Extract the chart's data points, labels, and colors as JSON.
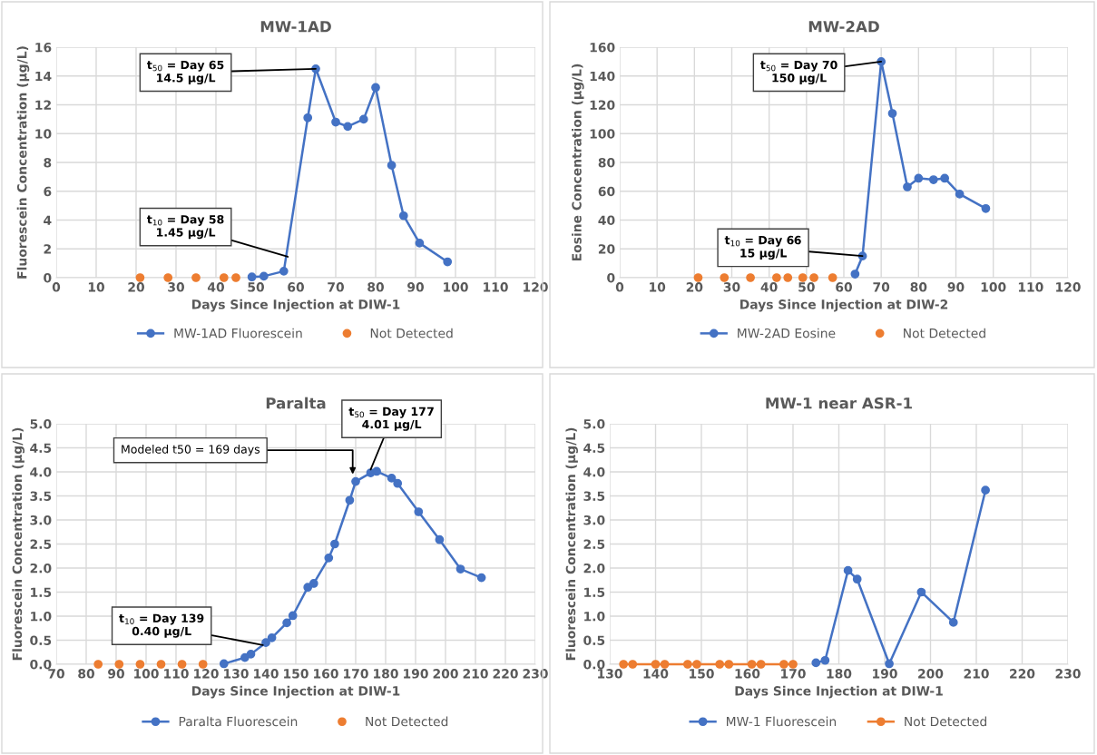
{
  "chart_data": [
    {
      "type": "line",
      "title": "MW-1AD",
      "xlabel": "Days Since Injection at DIW-1",
      "ylabel": "Fluorescein Concentration (µg/L)",
      "xlim": [
        0,
        120
      ],
      "xticks": [
        0,
        10,
        20,
        30,
        40,
        50,
        60,
        70,
        80,
        90,
        100,
        110,
        120
      ],
      "ylim": [
        0,
        16
      ],
      "yticks": [
        0,
        2,
        4,
        6,
        8,
        10,
        12,
        14,
        16
      ],
      "grid": true,
      "legend": "bottom",
      "series": [
        {
          "name": "MW-1AD Fluorescein",
          "type": "line",
          "marker": "circle",
          "color": "#4472c4",
          "x": [
            49,
            52,
            57,
            63,
            65,
            70,
            73,
            77,
            80,
            84,
            87,
            91,
            98
          ],
          "values": [
            0.05,
            0.1,
            0.45,
            11.1,
            14.5,
            10.8,
            10.5,
            11.0,
            13.2,
            7.8,
            4.3,
            2.4,
            1.1
          ]
        },
        {
          "name": "Not Detected",
          "type": "scatter",
          "marker": "circle",
          "color": "#ed7d31",
          "x": [
            21,
            28,
            35,
            42,
            45
          ],
          "values": [
            0,
            0,
            0,
            0,
            0
          ]
        }
      ],
      "annotations": [
        {
          "text": "t$_{50}$ = Day 65\n14.5 µg/L",
          "x": 65,
          "y": 14.5
        },
        {
          "text": "t$_{10}$ = Day 58\n1.45 µg/L",
          "x": 58,
          "y": 1.45
        }
      ]
    },
    {
      "type": "line",
      "title": "MW-2AD",
      "xlabel": "Days Since Injection at DIW-2",
      "ylabel": "Eosine Concentration (µg/L)",
      "xlim": [
        0,
        120
      ],
      "xticks": [
        0,
        10,
        20,
        30,
        40,
        50,
        60,
        70,
        80,
        90,
        100,
        110,
        120
      ],
      "ylim": [
        0,
        160
      ],
      "yticks": [
        0,
        20,
        40,
        60,
        80,
        100,
        120,
        140,
        160
      ],
      "grid": true,
      "legend": "bottom",
      "series": [
        {
          "name": "MW-2AD Eosine",
          "type": "line",
          "marker": "circle",
          "color": "#4472c4",
          "x": [
            63,
            65,
            70,
            73,
            77,
            80,
            84,
            87,
            91,
            98
          ],
          "values": [
            2.5,
            15,
            150,
            114,
            63,
            69,
            68,
            69,
            58,
            48
          ]
        },
        {
          "name": "Not Detected",
          "type": "scatter",
          "marker": "circle",
          "color": "#ed7d31",
          "x": [
            21,
            28,
            35,
            42,
            45,
            49,
            52,
            57
          ],
          "values": [
            0,
            0,
            0,
            0,
            0,
            0,
            0,
            0
          ]
        }
      ],
      "annotations": [
        {
          "text": "t$_{50}$ = Day 70\n150 µg/L",
          "x": 70,
          "y": 150
        },
        {
          "text": "t$_{10}$ = Day 66\n15 µg/L",
          "x": 65,
          "y": 15
        }
      ]
    },
    {
      "type": "line",
      "title": "Paralta",
      "xlabel": "Days Since Injection at DIW-1",
      "ylabel": "Fluorescein Concentration (µg/L)",
      "xlim": [
        70,
        230
      ],
      "xticks": [
        70,
        80,
        90,
        100,
        110,
        120,
        130,
        140,
        150,
        160,
        170,
        180,
        190,
        200,
        210,
        220,
        230
      ],
      "ylim": [
        0,
        5
      ],
      "yticks": [
        {
          "value": 0,
          "label": "0.0"
        },
        0.5,
        {
          "value": 1,
          "label": "1.0"
        },
        1.5,
        {
          "value": 2,
          "label": "2.0"
        },
        2.5,
        {
          "value": 3,
          "label": "3.0"
        },
        3.5,
        {
          "value": 4,
          "label": "4.0"
        },
        4.5,
        {
          "value": 5,
          "label": "5.0"
        }
      ],
      "grid": true,
      "legend": "bottom",
      "series": [
        {
          "name": "Paralta Fluorescein",
          "type": "line",
          "marker": "circle",
          "color": "#4472c4",
          "x": [
            126,
            133,
            135,
            140,
            142,
            147,
            149,
            154,
            156,
            161,
            163,
            168,
            170,
            175,
            177,
            182,
            184,
            191,
            198,
            205,
            212
          ],
          "values": [
            0.01,
            0.14,
            0.21,
            0.45,
            0.55,
            0.86,
            1.01,
            1.6,
            1.68,
            2.21,
            2.5,
            3.41,
            3.8,
            3.98,
            4.01,
            3.87,
            3.76,
            3.17,
            2.59,
            1.98,
            1.8
          ]
        },
        {
          "name": "Not Detected",
          "type": "scatter",
          "marker": "circle",
          "color": "#ed7d31",
          "x": [
            84,
            91,
            98,
            105,
            112,
            119
          ],
          "values": [
            0,
            0,
            0,
            0,
            0,
            0
          ]
        }
      ],
      "annotations": [
        {
          "text": "t$_{50}$ = Day 177\n4.01 µg/L",
          "x": 175,
          "y": 4.05
        },
        {
          "text": "Modeled t50 = 169 days",
          "x": 169,
          "y": 3.95
        },
        {
          "text": "t$_{10}$ = Day 139\n0.40 µg/L",
          "x": 139,
          "y": 0.4
        }
      ]
    },
    {
      "type": "line",
      "title": "MW-1 near ASR-1",
      "xlabel": "Days Since Injection at DIW-1",
      "ylabel": "Fluorescein Concentration (µg/L)",
      "xlim": [
        130,
        230
      ],
      "xticks": [
        130,
        140,
        150,
        160,
        170,
        180,
        190,
        200,
        210,
        220,
        230
      ],
      "ylim": [
        0,
        5
      ],
      "yticks": [
        {
          "value": 0,
          "label": "0.0"
        },
        0.5,
        {
          "value": 1,
          "label": "1.0"
        },
        1.5,
        {
          "value": 2,
          "label": "2.0"
        },
        2.5,
        {
          "value": 3,
          "label": "3.0"
        },
        3.5,
        {
          "value": 4,
          "label": "4.0"
        },
        4.5,
        {
          "value": 5,
          "label": "5.0"
        }
      ],
      "grid": true,
      "legend": "bottom",
      "series": [
        {
          "name": "MW-1 Fluorescein",
          "type": "line",
          "marker": "circle",
          "color": "#4472c4",
          "x": [
            175,
            177,
            182,
            184,
            191,
            198,
            205,
            212
          ],
          "values": [
            0.03,
            0.08,
            1.95,
            1.77,
            0.01,
            1.5,
            0.87,
            3.62
          ]
        },
        {
          "name": "Not Detected",
          "type": "line",
          "marker": "circle",
          "color": "#ed7d31",
          "x": [
            133,
            135,
            140,
            142,
            147,
            149,
            154,
            156,
            161,
            163,
            168,
            170
          ],
          "values": [
            0,
            0,
            0,
            0,
            0,
            0,
            0,
            0,
            0,
            0,
            0,
            0
          ]
        }
      ]
    }
  ]
}
